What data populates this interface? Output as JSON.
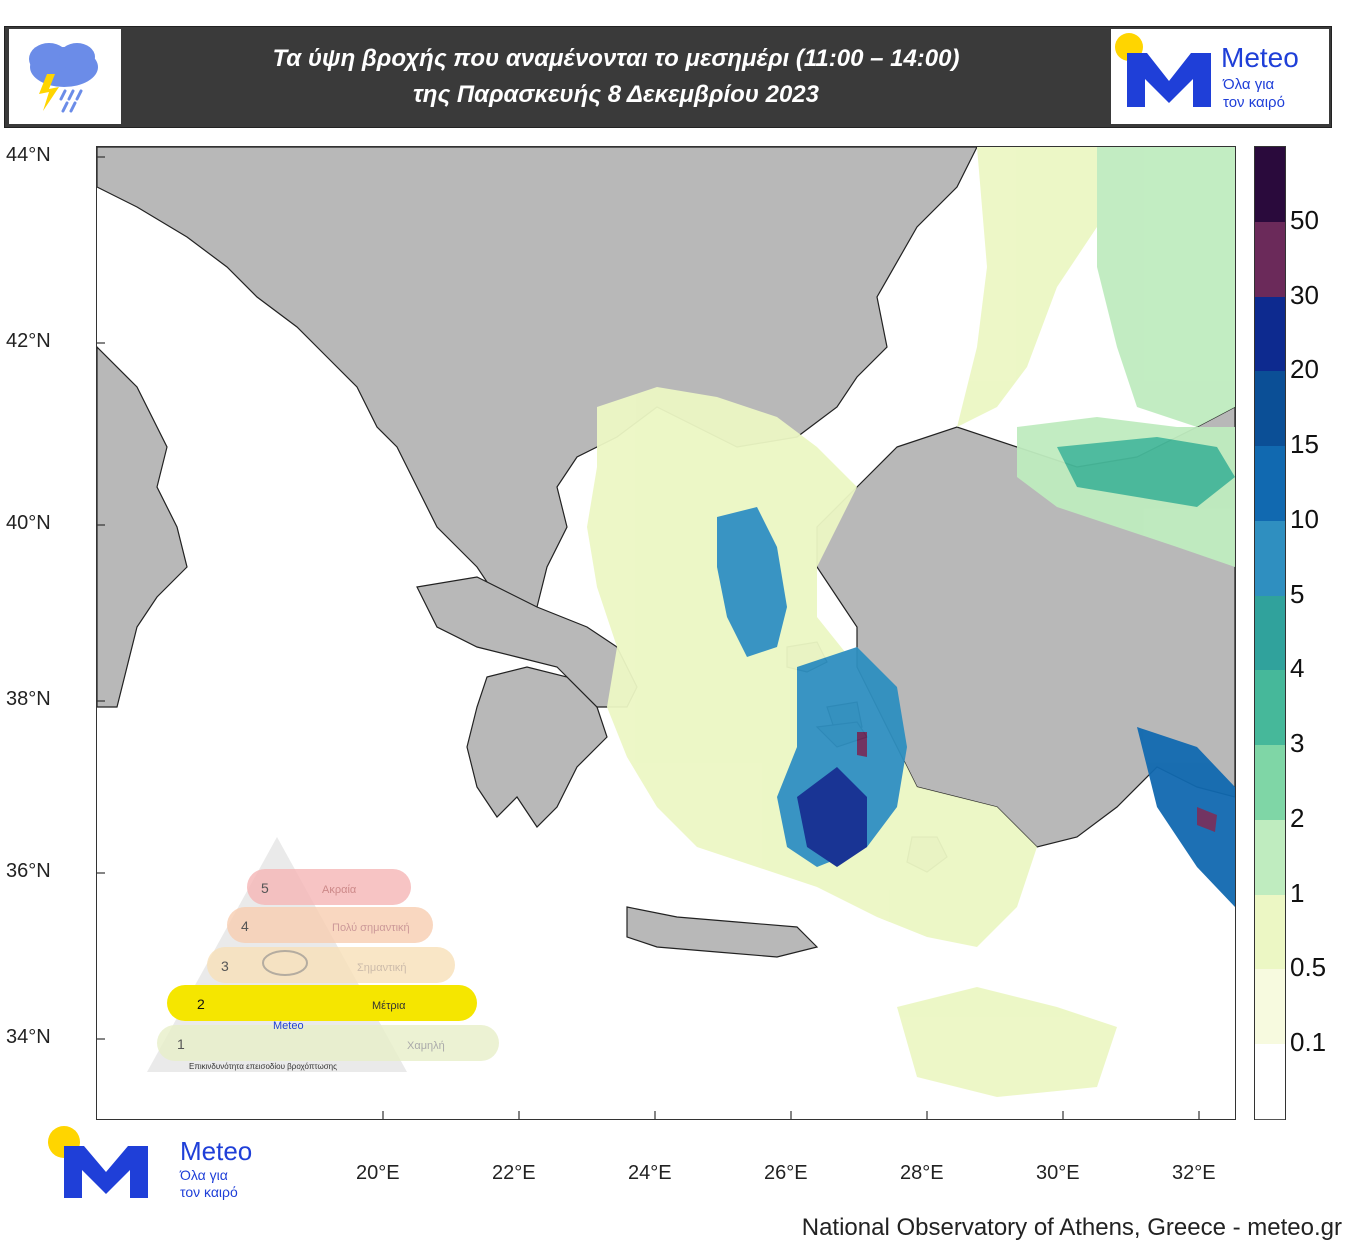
{
  "header": {
    "title_line1": "Τα ύψη βροχής που αναμένονται το μεσημέρι (11:00 – 14:00)",
    "title_line2": "της Παρασκευής 8 Δεκεμβρίου 2023",
    "weather_icon": "rain-thunder-icon"
  },
  "logo": {
    "brand": "Meteo",
    "tagline_line1": "Όλα για",
    "tagline_line2": "τον καιρό",
    "accent_yellow": "#ffd500",
    "accent_blue": "#1f3fd8"
  },
  "map": {
    "lat_labels": [
      "44°N",
      "42°N",
      "40°N",
      "38°N",
      "36°N",
      "34°N"
    ],
    "lon_labels": [
      "20°E",
      "22°E",
      "24°E",
      "26°E",
      "28°E",
      "30°E",
      "32°E"
    ],
    "land_color": "#b8b8b8",
    "sea_color": "#ffffff"
  },
  "legend": {
    "labels": [
      "50",
      "30",
      "20",
      "15",
      "10",
      "5",
      "4",
      "3",
      "2",
      "1",
      "0.5",
      "0.1"
    ],
    "colors": [
      "#2a0a3c",
      "#6b2a5a",
      "#0d2a8f",
      "#0b4f96",
      "#1169b0",
      "#2f8fc0",
      "#30a29c",
      "#46b89a",
      "#7fd6a6",
      "#bfecbf",
      "#ecf7c4",
      "#f7fadf",
      "#ffffff"
    ]
  },
  "scale_triangle": {
    "levels": [
      {
        "num": "5",
        "label": "Ακραία",
        "color": "#f5b5b5"
      },
      {
        "num": "4",
        "label": "Πολύ σημαντική",
        "color": "#f8cdb0"
      },
      {
        "num": "3",
        "label": "Σημαντική",
        "color": "#f7e0b8"
      },
      {
        "num": "2",
        "label": "Μέτρια",
        "color": "#f5e600"
      },
      {
        "num": "1",
        "label": "Χαμηλή",
        "color": "#e7efc8"
      }
    ],
    "active_level": "2",
    "caption": "Επικινδυνότητα επεισοδίου βροχόπτωσης",
    "mini_brand": "Meteo"
  },
  "footer": {
    "credit": "National Observatory of Athens, Greece - meteo.gr"
  }
}
